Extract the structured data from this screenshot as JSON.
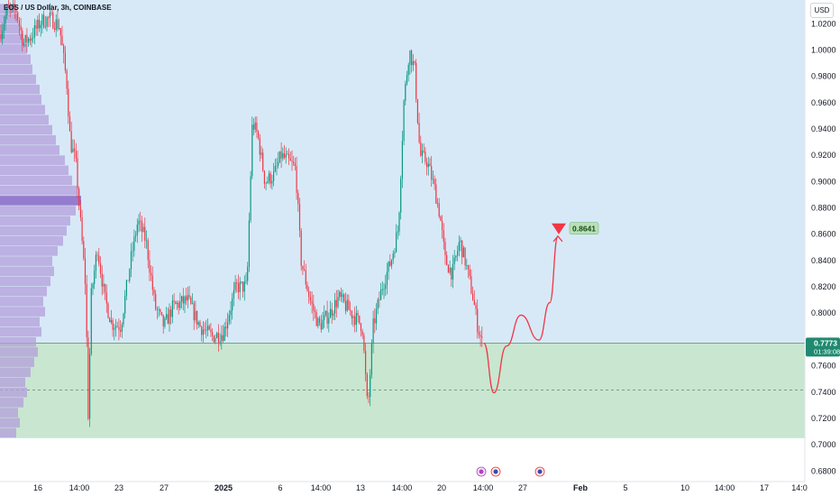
{
  "symbol": "EOS / US Dollar, 3h, COINBASE",
  "currency": "USD",
  "chart_data": {
    "type": "candlestick",
    "price_ticks": [
      "1.0200",
      "1.0000",
      "0.9800",
      "0.9600",
      "0.9400",
      "0.9200",
      "0.9000",
      "0.8800",
      "0.8600",
      "0.8400",
      "0.8200",
      "0.8000",
      "0.7600",
      "0.7400",
      "0.7200",
      "0.7000",
      "0.6800"
    ],
    "date_ticks": [
      "16",
      "14:00",
      "23",
      "27",
      "2025",
      "6",
      "14:00",
      "13",
      "14:00",
      "20",
      "14:00",
      "27",
      "Feb",
      "5",
      "10",
      "14:00",
      "17",
      "14:0"
    ],
    "ylim": [
      0.672,
      1.038
    ],
    "current_price": "0.7773",
    "countdown": "01:39:08",
    "target_label": "0.8641",
    "target_price": 0.8641,
    "demand_zone": {
      "top": 0.7773,
      "bottom": 0.705,
      "mid": 0.7415
    },
    "projection": [
      [
        537,
        0.777
      ],
      [
        548,
        0.7395
      ],
      [
        562,
        0.775
      ],
      [
        578,
        0.7985
      ],
      [
        598,
        0.7795
      ],
      [
        610,
        0.808
      ],
      [
        619,
        0.8585
      ]
    ],
    "path": [
      [
        0,
        1.012
      ],
      [
        8,
        1.03
      ],
      [
        18,
        1.03
      ],
      [
        26,
        1.005
      ],
      [
        34,
        1.01
      ],
      [
        46,
        1.022
      ],
      [
        56,
        1.024
      ],
      [
        66,
        1.018
      ],
      [
        74,
        0.975
      ],
      [
        78,
        0.93
      ],
      [
        84,
        0.915
      ],
      [
        88,
        0.88
      ],
      [
        95,
        0.82
      ],
      [
        98,
        0.72
      ],
      [
        101,
        0.812
      ],
      [
        108,
        0.85
      ],
      [
        116,
        0.812
      ],
      [
        124,
        0.792
      ],
      [
        134,
        0.79
      ],
      [
        145,
        0.84
      ],
      [
        153,
        0.87
      ],
      [
        162,
        0.855
      ],
      [
        172,
        0.805
      ],
      [
        182,
        0.79
      ],
      [
        192,
        0.805
      ],
      [
        208,
        0.81
      ],
      [
        222,
        0.79
      ],
      [
        235,
        0.782
      ],
      [
        248,
        0.785
      ],
      [
        262,
        0.82
      ],
      [
        274,
        0.82
      ],
      [
        280,
        0.945
      ],
      [
        286,
        0.935
      ],
      [
        294,
        0.9
      ],
      [
        304,
        0.905
      ],
      [
        312,
        0.92
      ],
      [
        320,
        0.915
      ],
      [
        328,
        0.91
      ],
      [
        334,
        0.84
      ],
      [
        344,
        0.81
      ],
      [
        354,
        0.79
      ],
      [
        366,
        0.8
      ],
      [
        376,
        0.812
      ],
      [
        390,
        0.8
      ],
      [
        402,
        0.79
      ],
      [
        408,
        0.725
      ],
      [
        414,
        0.79
      ],
      [
        424,
        0.82
      ],
      [
        434,
        0.84
      ],
      [
        442,
        0.865
      ],
      [
        448,
        0.96
      ],
      [
        454,
        1.0
      ],
      [
        460,
        0.985
      ],
      [
        466,
        0.92
      ],
      [
        474,
        0.915
      ],
      [
        482,
        0.895
      ],
      [
        488,
        0.875
      ],
      [
        494,
        0.84
      ],
      [
        502,
        0.83
      ],
      [
        510,
        0.855
      ],
      [
        516,
        0.84
      ],
      [
        524,
        0.815
      ],
      [
        530,
        0.79
      ],
      [
        535,
        0.777
      ]
    ],
    "volume_profile": {
      "price_min": 0.705,
      "price_max": 1.035,
      "widths": [
        18,
        22,
        20,
        26,
        30,
        28,
        34,
        38,
        42,
        40,
        46,
        44,
        50,
        48,
        52,
        56,
        60,
        58,
        64,
        70,
        74,
        78,
        84,
        90,
        86,
        80,
        76,
        72,
        66,
        62,
        58,
        54,
        50,
        46,
        44,
        40,
        36,
        34,
        30,
        26,
        22,
        20,
        16
      ]
    }
  },
  "colors": {
    "up": "#089981",
    "down": "#f23645",
    "zone": "#c8e6d0",
    "zone_border": "#5d8a6b",
    "upper": "#d7e9f7",
    "profile": "#b39ddb",
    "profile_hi": "#7e57c2",
    "projection": "#f23645"
  },
  "events": [
    {
      "name": "flash-icon",
      "x": 534
    },
    {
      "name": "us-flag-icon",
      "x": 550
    },
    {
      "name": "us-flag-icon",
      "x": 599
    }
  ]
}
